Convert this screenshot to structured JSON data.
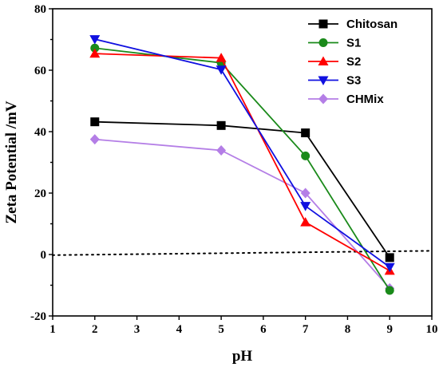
{
  "chart_data": {
    "type": "line",
    "xlabel": "pH",
    "ylabel": "Zeta Potential /mV",
    "xlim": [
      1,
      10
    ],
    "ylim": [
      -20,
      80
    ],
    "xticks": [
      1,
      2,
      3,
      4,
      5,
      6,
      7,
      8,
      9,
      10
    ],
    "yticks": [
      -20,
      0,
      20,
      40,
      60,
      80
    ],
    "grid": false,
    "legend_position": "top-right",
    "series": [
      {
        "name": "Chitosan",
        "color": "#000000",
        "marker": "square",
        "x": [
          2,
          5,
          7,
          9
        ],
        "y": [
          43.2,
          42.0,
          39.6,
          -1.0
        ]
      },
      {
        "name": "S1",
        "color": "#1a8a1a",
        "marker": "circle",
        "x": [
          2,
          5,
          7,
          9
        ],
        "y": [
          67.2,
          62.4,
          32.1,
          -11.7
        ]
      },
      {
        "name": "S2",
        "color": "#ff0000",
        "marker": "triangle-up",
        "x": [
          2,
          5,
          7,
          9
        ],
        "y": [
          65.4,
          64.0,
          10.5,
          -5.3
        ]
      },
      {
        "name": "S3",
        "color": "#1010e0",
        "marker": "triangle-down",
        "x": [
          2,
          5,
          7,
          9
        ],
        "y": [
          70.1,
          60.2,
          15.8,
          -4.1
        ]
      },
      {
        "name": "CHMix",
        "color": "#b47ee6",
        "marker": "diamond",
        "x": [
          2,
          5,
          7,
          9
        ],
        "y": [
          37.5,
          33.9,
          20.0,
          -11.0
        ]
      }
    ],
    "reference_line": {
      "style": "dotted",
      "color": "#000000",
      "x": [
        1,
        10
      ],
      "y": [
        -0.2,
        1.2
      ]
    }
  }
}
